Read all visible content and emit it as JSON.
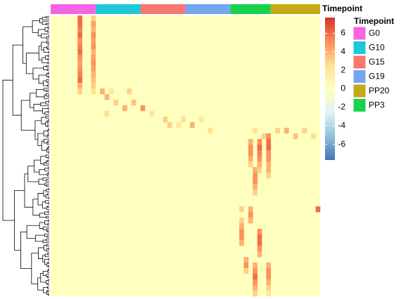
{
  "chart_data": {
    "type": "heatmap",
    "annotation_title": "Timepoint",
    "legend_title": "Timepoint",
    "colorbar_title": "Timepoint",
    "groups": [
      {
        "name": "G0",
        "color": "#f564e3",
        "columns": 10
      },
      {
        "name": "G10",
        "color": "#1fc8d8",
        "columns": 10
      },
      {
        "name": "G15",
        "color": "#f8766d",
        "columns": 10
      },
      {
        "name": "G19",
        "color": "#74a5f2",
        "columns": 10
      },
      {
        "name": "PP3",
        "color": "#1ad14d",
        "columns": 9
      },
      {
        "name": "PP20",
        "color": "#c5a916",
        "columns": 11
      }
    ],
    "legend_order": [
      0,
      1,
      2,
      3,
      5,
      4
    ],
    "n_rows": 50,
    "fill_value": 0,
    "clim": [
      -7.7,
      7.7
    ],
    "colorbar_ticks": [
      6,
      4,
      2,
      0,
      -2,
      -4,
      -6
    ],
    "colormap": [
      "#4575b4",
      "#91bfdb",
      "#e0f3f8",
      "#ffffbf",
      "#fee090",
      "#fc8d59",
      "#d73027"
    ],
    "cells": [
      {
        "row": 0,
        "col": 6,
        "value": 6
      },
      {
        "row": 1,
        "col": 6,
        "value": 6
      },
      {
        "row": 2,
        "col": 6,
        "value": 5.5
      },
      {
        "row": 3,
        "col": 6,
        "value": 6
      },
      {
        "row": 4,
        "col": 6,
        "value": 5
      },
      {
        "row": 5,
        "col": 6,
        "value": 5.5
      },
      {
        "row": 6,
        "col": 6,
        "value": 6
      },
      {
        "row": 7,
        "col": 6,
        "value": 5
      },
      {
        "row": 8,
        "col": 6,
        "value": 4.5
      },
      {
        "row": 9,
        "col": 6,
        "value": 5
      },
      {
        "row": 10,
        "col": 6,
        "value": 5.5
      },
      {
        "row": 11,
        "col": 6,
        "value": 6
      },
      {
        "row": 12,
        "col": 6,
        "value": 4
      },
      {
        "row": 13,
        "col": 6,
        "value": 3
      },
      {
        "row": 0,
        "col": 9,
        "value": 3
      },
      {
        "row": 1,
        "col": 9,
        "value": 4.5
      },
      {
        "row": 2,
        "col": 9,
        "value": 4
      },
      {
        "row": 3,
        "col": 9,
        "value": 5
      },
      {
        "row": 4,
        "col": 9,
        "value": 4.5
      },
      {
        "row": 5,
        "col": 9,
        "value": 5
      },
      {
        "row": 6,
        "col": 9,
        "value": 4
      },
      {
        "row": 7,
        "col": 9,
        "value": 4.5
      },
      {
        "row": 8,
        "col": 9,
        "value": 5
      },
      {
        "row": 9,
        "col": 9,
        "value": 4.5
      },
      {
        "row": 10,
        "col": 9,
        "value": 4
      },
      {
        "row": 11,
        "col": 9,
        "value": 3.5
      },
      {
        "row": 12,
        "col": 9,
        "value": 3
      },
      {
        "row": 13,
        "col": 9,
        "value": 2.5
      },
      {
        "row": 13,
        "col": 11,
        "value": 4
      },
      {
        "row": 13,
        "col": 13,
        "value": 2
      },
      {
        "row": 13,
        "col": 17,
        "value": 3
      },
      {
        "row": 14,
        "col": 12,
        "value": 4
      },
      {
        "row": 15,
        "col": 14,
        "value": 3
      },
      {
        "row": 15,
        "col": 18,
        "value": 3.5
      },
      {
        "row": 16,
        "col": 16,
        "value": 4
      },
      {
        "row": 16,
        "col": 20,
        "value": 5
      },
      {
        "row": 17,
        "col": 12,
        "value": 2.5
      },
      {
        "row": 17,
        "col": 22,
        "value": 2
      },
      {
        "row": 18,
        "col": 25,
        "value": 3
      },
      {
        "row": 18,
        "col": 29,
        "value": 2.5
      },
      {
        "row": 19,
        "col": 26,
        "value": 3
      },
      {
        "row": 19,
        "col": 31,
        "value": 4
      },
      {
        "row": 20,
        "col": 35,
        "value": 2.5
      },
      {
        "row": 19,
        "col": 28,
        "value": 2
      },
      {
        "row": 18,
        "col": 33,
        "value": 2
      },
      {
        "row": 20,
        "col": 50,
        "value": 3
      },
      {
        "row": 20,
        "col": 52,
        "value": 4
      },
      {
        "row": 21,
        "col": 54,
        "value": 3.5
      },
      {
        "row": 20,
        "col": 56,
        "value": 3
      },
      {
        "row": 21,
        "col": 58,
        "value": 2.5
      },
      {
        "row": 20,
        "col": 45,
        "value": 2
      },
      {
        "row": 21,
        "col": 47,
        "value": 3
      },
      {
        "row": 22,
        "col": 44,
        "value": 4
      },
      {
        "row": 23,
        "col": 44,
        "value": 5
      },
      {
        "row": 24,
        "col": 44,
        "value": 5
      },
      {
        "row": 25,
        "col": 44,
        "value": 4
      },
      {
        "row": 26,
        "col": 44,
        "value": 3
      },
      {
        "row": 22,
        "col": 46,
        "value": 5
      },
      {
        "row": 23,
        "col": 46,
        "value": 6
      },
      {
        "row": 24,
        "col": 46,
        "value": 5.5
      },
      {
        "row": 25,
        "col": 46,
        "value": 5
      },
      {
        "row": 26,
        "col": 46,
        "value": 4
      },
      {
        "row": 27,
        "col": 46,
        "value": 3
      },
      {
        "row": 21,
        "col": 48,
        "value": 5
      },
      {
        "row": 22,
        "col": 48,
        "value": 6
      },
      {
        "row": 23,
        "col": 48,
        "value": 6
      },
      {
        "row": 24,
        "col": 48,
        "value": 5
      },
      {
        "row": 25,
        "col": 48,
        "value": 5
      },
      {
        "row": 26,
        "col": 48,
        "value": 4
      },
      {
        "row": 27,
        "col": 48,
        "value": 4
      },
      {
        "row": 28,
        "col": 48,
        "value": 3
      },
      {
        "row": 27,
        "col": 45,
        "value": 4
      },
      {
        "row": 28,
        "col": 45,
        "value": 5
      },
      {
        "row": 29,
        "col": 45,
        "value": 5
      },
      {
        "row": 30,
        "col": 45,
        "value": 4
      },
      {
        "row": 31,
        "col": 45,
        "value": 3
      },
      {
        "row": 34,
        "col": 59,
        "value": 6
      },
      {
        "row": 34,
        "col": 42,
        "value": 3
      },
      {
        "row": 34,
        "col": 44,
        "value": 4
      },
      {
        "row": 35,
        "col": 44,
        "value": 5
      },
      {
        "row": 36,
        "col": 44,
        "value": 4
      },
      {
        "row": 36,
        "col": 42,
        "value": 3
      },
      {
        "row": 37,
        "col": 42,
        "value": 4
      },
      {
        "row": 38,
        "col": 42,
        "value": 5
      },
      {
        "row": 39,
        "col": 42,
        "value": 5
      },
      {
        "row": 40,
        "col": 42,
        "value": 4
      },
      {
        "row": 38,
        "col": 46,
        "value": 5
      },
      {
        "row": 39,
        "col": 46,
        "value": 6
      },
      {
        "row": 40,
        "col": 46,
        "value": 6
      },
      {
        "row": 41,
        "col": 46,
        "value": 5
      },
      {
        "row": 42,
        "col": 46,
        "value": 4
      },
      {
        "row": 43,
        "col": 43,
        "value": 4
      },
      {
        "row": 44,
        "col": 43,
        "value": 5
      },
      {
        "row": 45,
        "col": 43,
        "value": 3
      },
      {
        "row": 44,
        "col": 45,
        "value": 4
      },
      {
        "row": 45,
        "col": 45,
        "value": 5
      },
      {
        "row": 46,
        "col": 45,
        "value": 6
      },
      {
        "row": 47,
        "col": 45,
        "value": 5
      },
      {
        "row": 48,
        "col": 45,
        "value": 4
      },
      {
        "row": 49,
        "col": 45,
        "value": 3
      },
      {
        "row": 44,
        "col": 48,
        "value": 4
      },
      {
        "row": 45,
        "col": 48,
        "value": 5
      },
      {
        "row": 46,
        "col": 48,
        "value": 5
      },
      {
        "row": 47,
        "col": 48,
        "value": 4
      },
      {
        "row": 48,
        "col": 48,
        "value": 3
      },
      {
        "row": 49,
        "col": 48,
        "value": 2
      }
    ]
  }
}
